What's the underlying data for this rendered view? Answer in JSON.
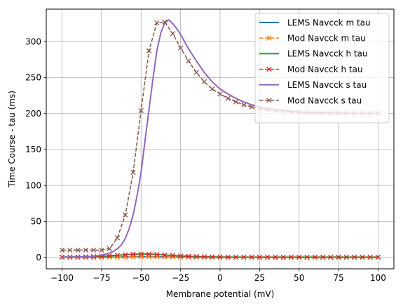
{
  "chart_data": {
    "type": "line",
    "title": "",
    "xlabel": "Membrane potential (mV)",
    "ylabel": "Time Course - tau (ms)",
    "xlim": [
      -110,
      110
    ],
    "ylim": [
      -16,
      345
    ],
    "xticks": [
      -100,
      -75,
      -50,
      -25,
      0,
      25,
      50,
      75,
      100
    ],
    "yticks": [
      0,
      50,
      100,
      150,
      200,
      250,
      300
    ],
    "grid": true,
    "legend_position": "top-right",
    "series": [
      {
        "name": "LEMS Navcck m tau",
        "style": "solid",
        "color": "#1f77b4",
        "x": [
          -100,
          -95,
          -90,
          -85,
          -80,
          -75,
          -70,
          -65,
          -60,
          -55,
          -50,
          -45,
          -40,
          -35,
          -30,
          -25,
          -20,
          -15,
          -10,
          -5,
          0,
          5,
          10,
          15,
          20,
          25,
          30,
          35,
          40,
          45,
          50,
          55,
          60,
          65,
          70,
          75,
          80,
          85,
          90,
          95,
          100
        ],
        "y": [
          0.0,
          0.0,
          0.0,
          0.1,
          0.1,
          0.1,
          0.2,
          0.3,
          0.4,
          0.5,
          0.6,
          0.6,
          0.6,
          0.5,
          0.4,
          0.3,
          0.3,
          0.2,
          0.2,
          0.1,
          0.1,
          0.1,
          0.1,
          0.1,
          0.1,
          0.0,
          0.0,
          0.0,
          0.0,
          0.0,
          0.0,
          0.0,
          0.0,
          0.0,
          0.0,
          0.0,
          0.0,
          0.0,
          0.0,
          0.0,
          0.0
        ]
      },
      {
        "name": "Mod Navcck m tau",
        "style": "dashed-x",
        "color": "#ff7f0e",
        "x": [
          -100,
          -95,
          -90,
          -85,
          -80,
          -75,
          -70,
          -65,
          -60,
          -55,
          -50,
          -45,
          -40,
          -35,
          -30,
          -25,
          -20,
          -15,
          -10,
          -5,
          0,
          5,
          10,
          15,
          20,
          25,
          30,
          35,
          40,
          45,
          50,
          55,
          60,
          65,
          70,
          75,
          80,
          85,
          90,
          95,
          100
        ],
        "y": [
          0.0,
          0.0,
          0.0,
          0.1,
          0.1,
          0.1,
          0.2,
          0.3,
          0.4,
          0.5,
          0.6,
          0.6,
          0.6,
          0.5,
          0.4,
          0.3,
          0.3,
          0.2,
          0.2,
          0.1,
          0.1,
          0.1,
          0.1,
          0.1,
          0.1,
          0.0,
          0.0,
          0.0,
          0.0,
          0.0,
          0.0,
          0.0,
          0.0,
          0.0,
          0.0,
          0.0,
          0.0,
          0.0,
          0.0,
          0.0,
          0.0
        ]
      },
      {
        "name": "LEMS Navcck h tau",
        "style": "solid",
        "color": "#2ca02c",
        "x": [
          -100,
          -95,
          -90,
          -85,
          -80,
          -75,
          -70,
          -65,
          -60,
          -55,
          -50,
          -45,
          -40,
          -35,
          -30,
          -25,
          -20,
          -15,
          -10,
          -5,
          0,
          5,
          10,
          15,
          20,
          25,
          30,
          35,
          40,
          45,
          50,
          55,
          60,
          65,
          70,
          75,
          80,
          85,
          90,
          95,
          100
        ],
        "y": [
          0.3,
          0.4,
          0.5,
          0.7,
          1.0,
          1.4,
          2.0,
          2.8,
          3.6,
          4.2,
          4.5,
          4.4,
          4.0,
          3.3,
          2.6,
          1.9,
          1.4,
          1.0,
          0.7,
          0.5,
          0.4,
          0.3,
          0.2,
          0.2,
          0.2,
          0.2,
          0.2,
          0.2,
          0.2,
          0.2,
          0.2,
          0.2,
          0.2,
          0.2,
          0.2,
          0.2,
          0.2,
          0.2,
          0.2,
          0.2,
          0.2
        ]
      },
      {
        "name": "Mod Navcck h tau",
        "style": "dashed-x",
        "color": "#d62728",
        "x": [
          -100,
          -95,
          -90,
          -85,
          -80,
          -75,
          -70,
          -65,
          -60,
          -55,
          -50,
          -45,
          -40,
          -35,
          -30,
          -25,
          -20,
          -15,
          -10,
          -5,
          0,
          5,
          10,
          15,
          20,
          25,
          30,
          35,
          40,
          45,
          50,
          55,
          60,
          65,
          70,
          75,
          80,
          85,
          90,
          95,
          100
        ],
        "y": [
          0.3,
          0.4,
          0.5,
          0.7,
          1.0,
          1.4,
          2.0,
          2.8,
          3.6,
          4.2,
          4.5,
          4.4,
          4.0,
          3.3,
          2.6,
          1.9,
          1.4,
          1.0,
          0.7,
          0.5,
          0.4,
          0.3,
          0.2,
          0.2,
          0.2,
          0.2,
          0.2,
          0.2,
          0.2,
          0.2,
          0.2,
          0.2,
          0.2,
          0.2,
          0.2,
          0.2,
          0.2,
          0.2,
          0.2,
          0.2,
          0.2
        ]
      },
      {
        "name": "LEMS Navcck s tau",
        "style": "solid",
        "color": "#9467bd",
        "x": [
          -100,
          -95,
          -90,
          -85,
          -80,
          -75,
          -70,
          -67.5,
          -65,
          -62.5,
          -60,
          -57.5,
          -55,
          -52.5,
          -50,
          -47.5,
          -45,
          -42.5,
          -40,
          -37.5,
          -35,
          -32.5,
          -30,
          -27.5,
          -25,
          -22.5,
          -20,
          -15,
          -10,
          -5,
          0,
          5,
          10,
          15,
          20,
          25,
          30,
          35,
          40,
          45,
          50,
          55,
          60,
          65,
          70,
          75,
          80,
          85,
          90,
          95,
          100
        ],
        "y": [
          0.2,
          0.3,
          0.5,
          0.9,
          1.6,
          3.0,
          5.8,
          8.2,
          12,
          17,
          26,
          40,
          59,
          86,
          118,
          162,
          205,
          248,
          287,
          312,
          326,
          330,
          325,
          318,
          310,
          300,
          290,
          273,
          257,
          244,
          234,
          227,
          221,
          216,
          212,
          209,
          207,
          205,
          204,
          203,
          202,
          201.5,
          201,
          200.8,
          200.6,
          200.4,
          200.3,
          200.2,
          200.1,
          200.1,
          200
        ]
      },
      {
        "name": "Mod Navcck s tau",
        "style": "dashed-x",
        "color": "#8c564b",
        "x": [
          -100,
          -95,
          -90,
          -85,
          -80,
          -75,
          -70,
          -65,
          -60,
          -55,
          -50,
          -45,
          -40,
          -35,
          -30,
          -25,
          -20,
          -15,
          -10,
          -5,
          0,
          5,
          10,
          15,
          20,
          25,
          30,
          35,
          40,
          45,
          50,
          55,
          60,
          65,
          70,
          75,
          80,
          85,
          90,
          95,
          100
        ],
        "y": [
          10,
          10,
          10,
          10,
          10,
          10,
          12,
          27,
          59,
          118,
          204,
          287,
          326,
          327,
          311,
          291,
          273,
          257,
          244,
          234,
          227,
          221,
          216,
          212,
          209,
          207,
          205,
          204,
          203,
          202,
          201.5,
          201,
          200.8,
          200.6,
          200.4,
          200.3,
          200.2,
          200.1,
          200.1,
          200,
          200
        ]
      }
    ]
  }
}
